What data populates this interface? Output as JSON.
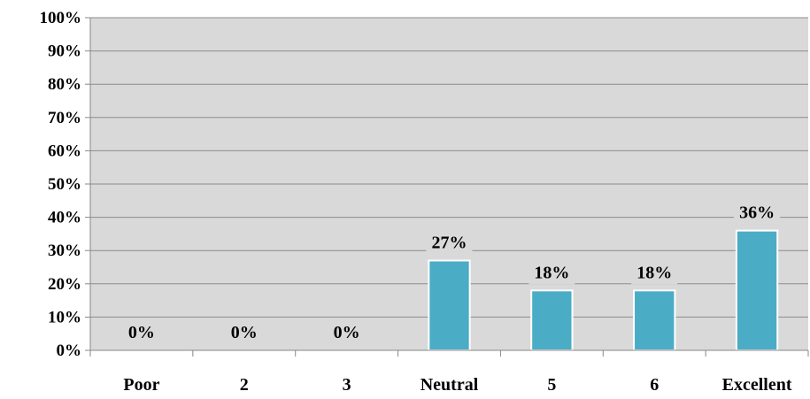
{
  "chart_data": {
    "type": "bar",
    "categories": [
      "Poor",
      "2",
      "3",
      "Neutral",
      "5",
      "6",
      "Excellent"
    ],
    "values": [
      0,
      0,
      0,
      27,
      18,
      18,
      36
    ],
    "value_labels": [
      "0%",
      "0%",
      "0%",
      "27%",
      "18%",
      "18%",
      "36%"
    ],
    "title": "",
    "xlabel": "",
    "ylabel": "",
    "ylim": [
      0,
      100
    ],
    "yticks": [
      "0%",
      "10%",
      "20%",
      "30%",
      "40%",
      "50%",
      "60%",
      "70%",
      "80%",
      "90%",
      "100%"
    ],
    "grid": true,
    "legend": "none",
    "colors": {
      "bar": "#4bacc6",
      "bar_border": "#ffffff",
      "plot_background": "#d9d9d9",
      "gridline": "#8c8c8c"
    }
  }
}
